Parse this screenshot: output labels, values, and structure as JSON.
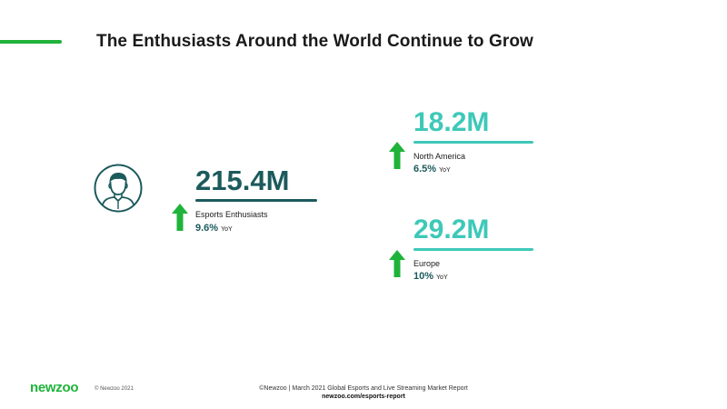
{
  "slide": {
    "title": "The Enthusiasts Around the World Continue to Grow"
  },
  "main_stat": {
    "value": "215.4M",
    "label": "Esports Enthusiasts",
    "yoy_value": "9.6%",
    "yoy_suffix": "YoY",
    "icon": "person-icon",
    "trend_icon": "arrow-up-icon"
  },
  "regions": {
    "north_america": {
      "value": "18.2M",
      "label": "North America",
      "yoy_value": "6.5%",
      "yoy_suffix": "YoY"
    },
    "europe": {
      "value": "29.2M",
      "label": "Europe",
      "yoy_value": "10%",
      "yoy_suffix": "YoY"
    }
  },
  "footer": {
    "logo": "newzoo",
    "copyright": "© Newzoo 2021",
    "report": "©Newzoo | March 2021 Global Esports and Live Streaming Market Report",
    "url": "newzoo.com/esports-report"
  },
  "colors": {
    "accent_green": "#1fb33a",
    "dark_teal": "#1c5a5c",
    "light_teal": "#3ec8b8",
    "arrow_green": "#1fb33a"
  }
}
